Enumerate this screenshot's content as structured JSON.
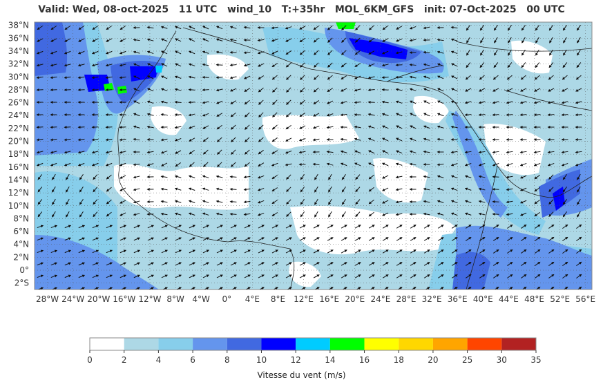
{
  "header": {
    "valid": "Valid: Wed, 08-oct-2025",
    "hour": "11 UTC",
    "variable": "wind_10",
    "lead": "T:+35hr",
    "model": "MOL_6KM_GFS",
    "init": "init: 07-Oct-2025",
    "init_hour": "00 UTC"
  },
  "map": {
    "lat_labels": [
      "38°N",
      "36°N",
      "34°N",
      "32°N",
      "30°N",
      "28°N",
      "26°N",
      "24°N",
      "22°N",
      "20°N",
      "18°N",
      "16°N",
      "14°N",
      "12°N",
      "10°N",
      "8°N",
      "6°N",
      "4°N",
      "2°N",
      "0°",
      "2°S"
    ],
    "lon_labels": [
      "28°W",
      "24°W",
      "20°W",
      "16°W",
      "12°W",
      "8°W",
      "4°W",
      "0°",
      "4°E",
      "8°E",
      "12°E",
      "16°E",
      "20°E",
      "24°E",
      "28°E",
      "32°E",
      "36°E",
      "40°E",
      "44°E",
      "48°E",
      "52°E",
      "56°E"
    ],
    "lat_range": [
      -3,
      38.5
    ],
    "lon_range": [
      -30,
      57
    ]
  },
  "colorbar": {
    "label": "Vitesse du vent (m/s)",
    "ticks": [
      "0",
      "2",
      "4",
      "6",
      "8",
      "10",
      "12",
      "14",
      "16",
      "18",
      "20",
      "25",
      "30",
      "35"
    ],
    "colors": [
      "#ffffff",
      "#add8e6",
      "#87ceeb",
      "#6495ed",
      "#4169e1",
      "#0000ff",
      "#00ccff",
      "#00ff00",
      "#ffff00",
      "#ffd700",
      "#ffa500",
      "#ff4500",
      "#b22222"
    ]
  }
}
